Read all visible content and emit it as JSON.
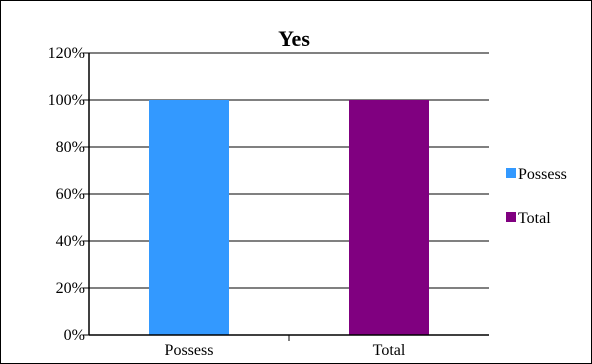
{
  "chart_data": {
    "type": "bar",
    "title": "Yes",
    "categories": [
      "Possess",
      "Total"
    ],
    "values": [
      1.0,
      1.0
    ],
    "colors": [
      "#3399ff",
      "#800080"
    ],
    "ylim": [
      0,
      1.2
    ],
    "yticks": [
      0,
      0.2,
      0.4,
      0.6,
      0.8,
      1.0,
      1.2
    ],
    "ytick_labels": [
      "0%",
      "20%",
      "40%",
      "60%",
      "80%",
      "100%",
      "120%"
    ],
    "xlabel": "",
    "ylabel": "",
    "grid": "horizontal",
    "legend": {
      "position": "right",
      "entries": [
        "Possess",
        "Total"
      ]
    }
  }
}
